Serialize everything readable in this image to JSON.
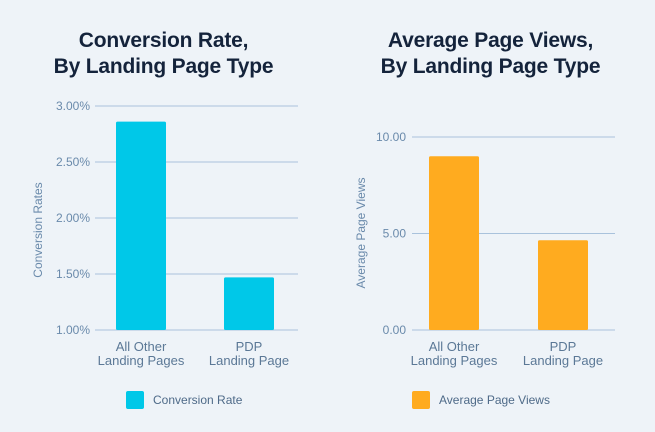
{
  "chart_data": [
    {
      "type": "bar",
      "title_lines": [
        "Conversion Rate,",
        "By Landing Page Type"
      ],
      "ylabel": "Conversion Rates",
      "categories": [
        [
          "All Other",
          "Landing Pages"
        ],
        [
          "PDP",
          "Landing Page"
        ]
      ],
      "values": [
        2.86,
        1.47
      ],
      "ylim": [
        1.0,
        3.0
      ],
      "yticks": [
        1.0,
        1.5,
        2.0,
        2.5,
        3.0
      ],
      "ytick_labels": [
        "1.00%",
        "1.50%",
        "2.00%",
        "2.50%",
        "3.00%"
      ],
      "legend": "Conversion Rate",
      "grid": true,
      "color": "#00c8e8"
    },
    {
      "type": "bar",
      "title_lines": [
        "Average Page Views,",
        "By Landing Page Type"
      ],
      "ylabel": "Average Page Views",
      "categories": [
        [
          "All Other",
          "Landing Pages"
        ],
        [
          "PDP",
          "Landing Page"
        ]
      ],
      "values": [
        9.0,
        4.65
      ],
      "ylim": [
        0,
        10
      ],
      "yticks": [
        0,
        5,
        10
      ],
      "ytick_labels": [
        "0.00",
        "5.00",
        "10.00"
      ],
      "legend": "Average Page Views",
      "grid": true,
      "color": "#ffab1f"
    }
  ],
  "colors": {
    "gridline": "#a9c2dc",
    "tick_text": "#6a8aab",
    "title": "#14233b"
  }
}
